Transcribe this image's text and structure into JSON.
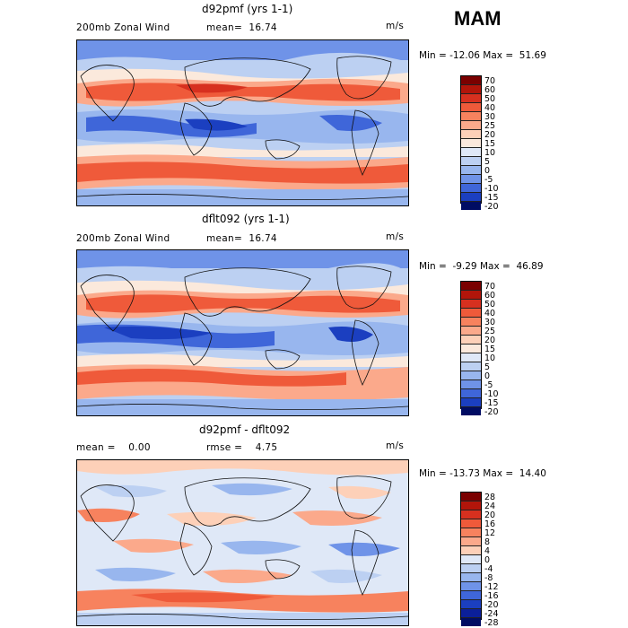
{
  "season": "MAM",
  "panels": [
    {
      "title": "d92pmf (yrs 1-1)",
      "left": "200mb Zonal Wind",
      "stat": "mean=  16.74",
      "units": "m/s",
      "minmax": "Min = -12.06 Max =  51.69",
      "colorbar": [
        "70",
        "60",
        "50",
        "40",
        "30",
        "25",
        "20",
        "15",
        "10",
        "5",
        "0",
        "-5",
        "-10",
        "-15",
        "-20"
      ]
    },
    {
      "title": "dflt092 (yrs 1-1)",
      "left": "200mb Zonal Wind",
      "stat": "mean=  16.74",
      "units": "m/s",
      "minmax": "Min =  -9.29 Max =  46.89",
      "colorbar": [
        "70",
        "60",
        "50",
        "40",
        "30",
        "25",
        "20",
        "15",
        "10",
        "5",
        "0",
        "-5",
        "-10",
        "-15",
        "-20"
      ]
    },
    {
      "title": "d92pmf - dflt092",
      "left": "mean =    0.00",
      "stat": "rmse =    4.75",
      "units": "m/s",
      "minmax": "Min = -13.73 Max =  14.40",
      "colorbar": [
        "28",
        "24",
        "20",
        "16",
        "12",
        "8",
        "4",
        "0",
        "-4",
        "-8",
        "-12",
        "-16",
        "-20",
        "-24",
        "-28"
      ]
    }
  ],
  "colors": {
    "scale": [
      "#7a0000",
      "#b2150a",
      "#d7301f",
      "#ef5a3a",
      "#f7825e",
      "#fba98b",
      "#fdd0b8",
      "#fbe9dc",
      "#dfe8f7",
      "#bcd0f2",
      "#98b6ee",
      "#6f93e8",
      "#3f66d9",
      "#1b3fc0",
      "#0b1f99",
      "#000c63"
    ]
  }
}
